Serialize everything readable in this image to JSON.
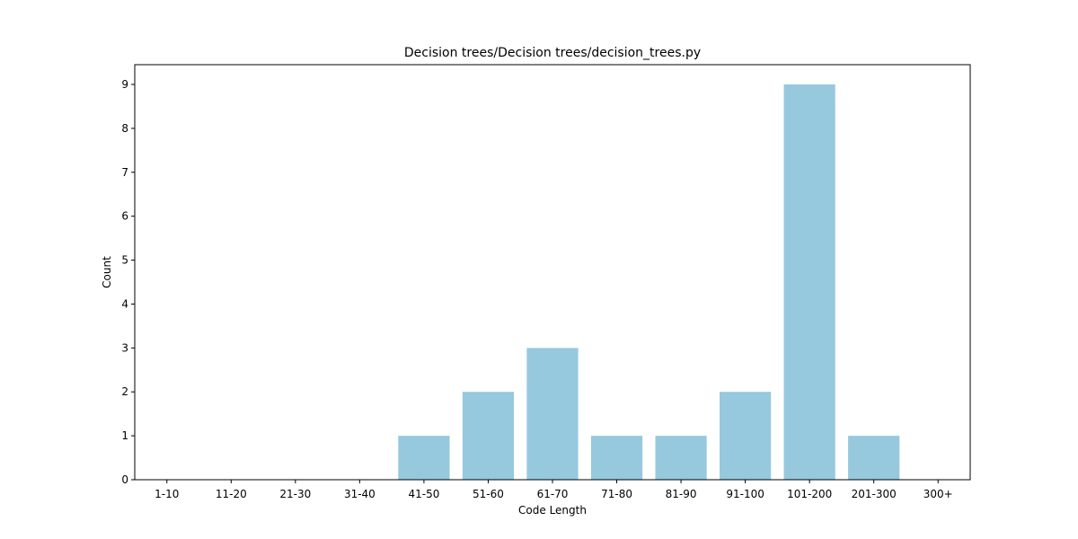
{
  "chart_data": {
    "type": "bar",
    "title": "Decision trees/Decision trees/decision_trees.py",
    "xlabel": "Code Length",
    "ylabel": "Count",
    "categories": [
      "1-10",
      "11-20",
      "21-30",
      "31-40",
      "41-50",
      "51-60",
      "61-70",
      "71-80",
      "81-90",
      "91-100",
      "101-200",
      "201-300",
      "300+"
    ],
    "values": [
      0,
      0,
      0,
      0,
      1,
      2,
      3,
      1,
      1,
      2,
      9,
      1,
      0
    ],
    "ylim": [
      0,
      9.45
    ],
    "yticks": [
      "0",
      "1",
      "2",
      "3",
      "4",
      "5",
      "6",
      "7",
      "8",
      "9"
    ],
    "bar_color": "#96c9de",
    "grid": false,
    "legend": "none"
  }
}
